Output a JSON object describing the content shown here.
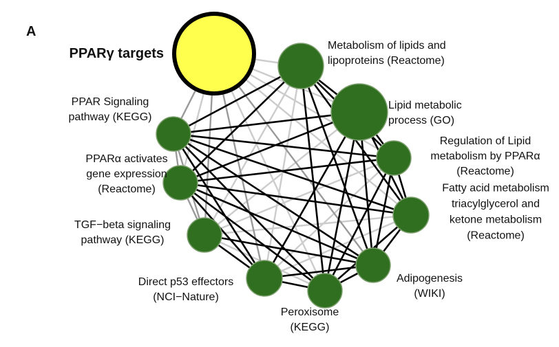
{
  "panel_label": "A",
  "colors": {
    "hub_fill": "#ffff4d",
    "hub_stroke": "#000000",
    "node_fill": "#2f6f1f",
    "node_stroke": "#7fa070",
    "edge_strong": "#000000",
    "edge_medium": "#9a9a9a",
    "edge_weak": "#cccccc"
  },
  "nodes": [
    {
      "id": "pparg",
      "hub": true,
      "label_lines": [
        "PPARγ targets"
      ]
    },
    {
      "id": "metab_lipids",
      "label_lines": [
        "Metabolism of lipids and",
        "lipoproteins (Reactome)"
      ]
    },
    {
      "id": "lipid_metabolic",
      "label_lines": [
        "Lipid metabolic",
        "process (GO)"
      ]
    },
    {
      "id": "reg_lipid",
      "label_lines": [
        "Regulation of Lipid",
        "metabolism by PPARα",
        "(Reactome)"
      ]
    },
    {
      "id": "fatty_acid",
      "label_lines": [
        "Fatty acid metabolism",
        "triacylglycerol and",
        "ketone metabolism",
        "(Reactome)"
      ]
    },
    {
      "id": "adipogenesis",
      "label_lines": [
        "Adipogenesis",
        "(WIKI)"
      ]
    },
    {
      "id": "peroxisome",
      "label_lines": [
        "Peroxisome",
        "(KEGG)"
      ]
    },
    {
      "id": "p53",
      "label_lines": [
        "Direct p53 effectors",
        "(NCI−Nature)"
      ]
    },
    {
      "id": "tgf",
      "label_lines": [
        "TGF−beta signaling",
        "pathway (KEGG)"
      ]
    },
    {
      "id": "ppara_act",
      "label_lines": [
        "PPARα activates",
        "gene  expression",
        "(Reactome)"
      ]
    },
    {
      "id": "ppar_sig",
      "label_lines": [
        "PPAR Signaling",
        "pathway (KEGG)"
      ]
    }
  ],
  "edges": [
    [
      "pparg",
      "metab_lipids",
      "weak"
    ],
    [
      "pparg",
      "lipid_metabolic",
      "weak"
    ],
    [
      "pparg",
      "reg_lipid",
      "weak"
    ],
    [
      "pparg",
      "fatty_acid",
      "weak"
    ],
    [
      "pparg",
      "adipogenesis",
      "medium"
    ],
    [
      "pparg",
      "peroxisome",
      "weak"
    ],
    [
      "pparg",
      "p53",
      "medium"
    ],
    [
      "pparg",
      "tgf",
      "medium"
    ],
    [
      "pparg",
      "ppara_act",
      "weak"
    ],
    [
      "pparg",
      "ppar_sig",
      "medium"
    ],
    [
      "metab_lipids",
      "lipid_metabolic",
      "strong"
    ],
    [
      "metab_lipids",
      "reg_lipid",
      "strong"
    ],
    [
      "metab_lipids",
      "fatty_acid",
      "strong"
    ],
    [
      "metab_lipids",
      "adipogenesis",
      "strong"
    ],
    [
      "metab_lipids",
      "peroxisome",
      "strong"
    ],
    [
      "metab_lipids",
      "p53",
      "weak"
    ],
    [
      "metab_lipids",
      "tgf",
      "weak"
    ],
    [
      "metab_lipids",
      "ppara_act",
      "strong"
    ],
    [
      "metab_lipids",
      "ppar_sig",
      "strong"
    ],
    [
      "lipid_metabolic",
      "reg_lipid",
      "strong"
    ],
    [
      "lipid_metabolic",
      "fatty_acid",
      "strong"
    ],
    [
      "lipid_metabolic",
      "adipogenesis",
      "strong"
    ],
    [
      "lipid_metabolic",
      "peroxisome",
      "strong"
    ],
    [
      "lipid_metabolic",
      "p53",
      "strong"
    ],
    [
      "lipid_metabolic",
      "tgf",
      "weak"
    ],
    [
      "lipid_metabolic",
      "ppara_act",
      "strong"
    ],
    [
      "lipid_metabolic",
      "ppar_sig",
      "strong"
    ],
    [
      "reg_lipid",
      "fatty_acid",
      "strong"
    ],
    [
      "reg_lipid",
      "adipogenesis",
      "strong"
    ],
    [
      "reg_lipid",
      "peroxisome",
      "strong"
    ],
    [
      "reg_lipid",
      "p53",
      "weak"
    ],
    [
      "reg_lipid",
      "tgf",
      "weak"
    ],
    [
      "reg_lipid",
      "ppara_act",
      "strong"
    ],
    [
      "reg_lipid",
      "ppar_sig",
      "strong"
    ],
    [
      "fatty_acid",
      "adipogenesis",
      "strong"
    ],
    [
      "fatty_acid",
      "peroxisome",
      "strong"
    ],
    [
      "fatty_acid",
      "p53",
      "weak"
    ],
    [
      "fatty_acid",
      "tgf",
      "weak"
    ],
    [
      "fatty_acid",
      "ppara_act",
      "strong"
    ],
    [
      "fatty_acid",
      "ppar_sig",
      "strong"
    ],
    [
      "adipogenesis",
      "peroxisome",
      "strong"
    ],
    [
      "adipogenesis",
      "p53",
      "strong"
    ],
    [
      "adipogenesis",
      "tgf",
      "strong"
    ],
    [
      "adipogenesis",
      "ppara_act",
      "strong"
    ],
    [
      "adipogenesis",
      "ppar_sig",
      "strong"
    ],
    [
      "peroxisome",
      "p53",
      "strong"
    ],
    [
      "peroxisome",
      "tgf",
      "weak"
    ],
    [
      "peroxisome",
      "ppara_act",
      "strong"
    ],
    [
      "peroxisome",
      "ppar_sig",
      "strong"
    ],
    [
      "p53",
      "tgf",
      "strong"
    ],
    [
      "p53",
      "ppara_act",
      "strong"
    ],
    [
      "p53",
      "ppar_sig",
      "strong"
    ],
    [
      "tgf",
      "ppara_act",
      "medium"
    ],
    [
      "tgf",
      "ppar_sig",
      "medium"
    ],
    [
      "ppara_act",
      "ppar_sig",
      "medium"
    ]
  ]
}
